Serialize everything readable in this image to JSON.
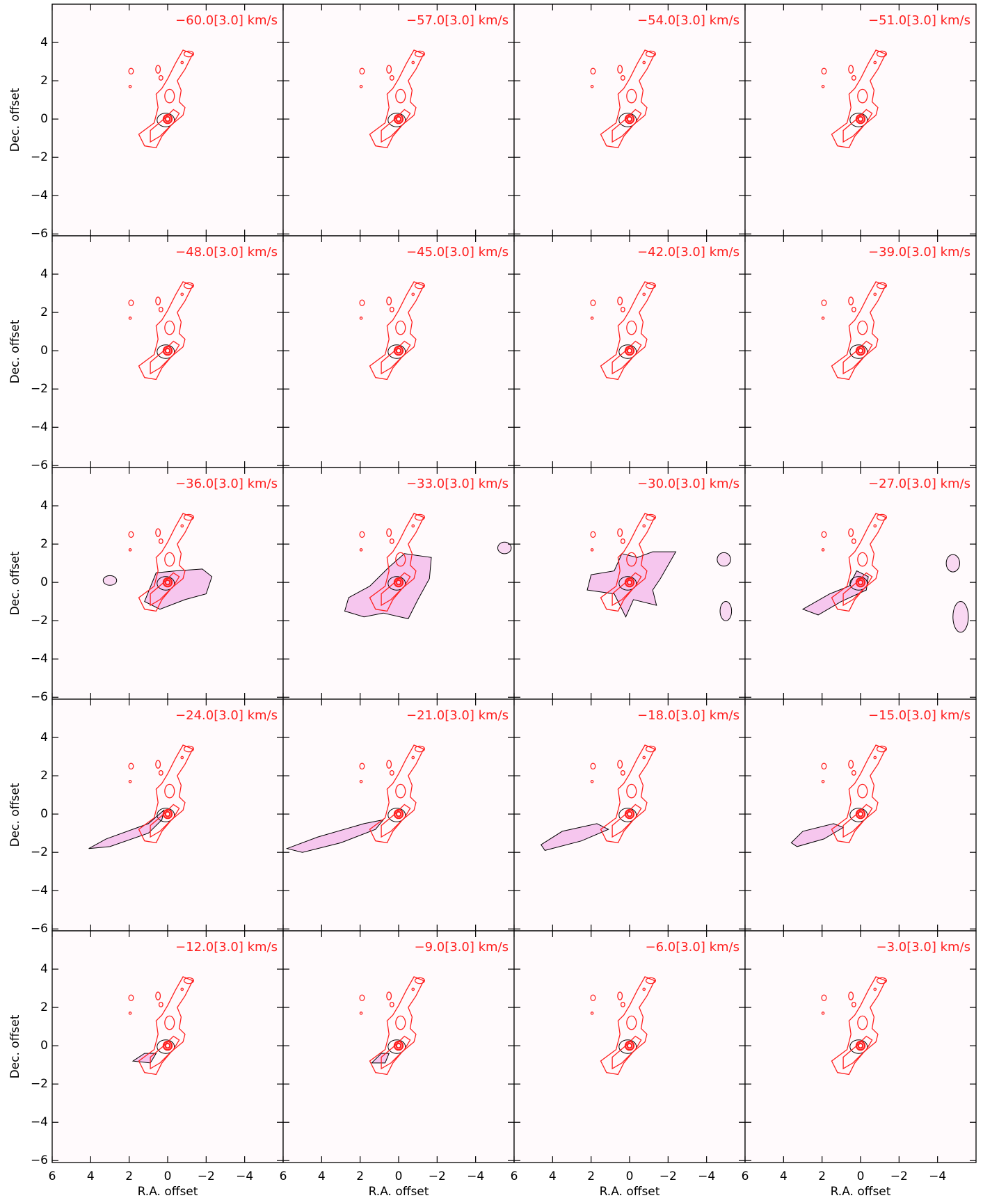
{
  "chart_data": {
    "type": "channel-map",
    "xlabel": "R.A. offset",
    "ylabel": "Dec. offset",
    "xlim": [
      6,
      -6
    ],
    "ylim": [
      -6.1,
      6.0
    ],
    "xticks": [
      6,
      4,
      2,
      {
        "value": 0,
        "label": "0"
      },
      {
        "value": -2,
        "label": "−2"
      },
      {
        "value": -4,
        "label": "−4"
      }
    ],
    "yticks": [
      4,
      2,
      0,
      {
        "value": -2,
        "label": "−2"
      },
      {
        "value": -4,
        "label": "−4"
      },
      {
        "value": -6,
        "label": "−6"
      }
    ],
    "label_color": "#ff2020",
    "panels": [
      {
        "label": "−60.0[3.0] km/s"
      },
      {
        "label": "−57.0[3.0] km/s"
      },
      {
        "label": "−54.0[3.0] km/s"
      },
      {
        "label": "−51.0[3.0] km/s"
      },
      {
        "label": "−48.0[3.0] km/s"
      },
      {
        "label": "−45.0[3.0] km/s"
      },
      {
        "label": "−42.0[3.0] km/s"
      },
      {
        "label": "−39.0[3.0] km/s"
      },
      {
        "label": "−36.0[3.0] km/s"
      },
      {
        "label": "−33.0[3.0] km/s"
      },
      {
        "label": "−30.0[3.0] km/s"
      },
      {
        "label": "−27.0[3.0] km/s"
      },
      {
        "label": "−24.0[3.0] km/s"
      },
      {
        "label": "−21.0[3.0] km/s"
      },
      {
        "label": "−18.0[3.0] km/s"
      },
      {
        "label": "−15.0[3.0] km/s"
      },
      {
        "label": "−12.0[3.0] km/s"
      },
      {
        "label": "−9.0[3.0] km/s"
      },
      {
        "label": "−6.0[3.0] km/s"
      },
      {
        "label": "−3.0[3.0] km/s"
      }
    ]
  }
}
